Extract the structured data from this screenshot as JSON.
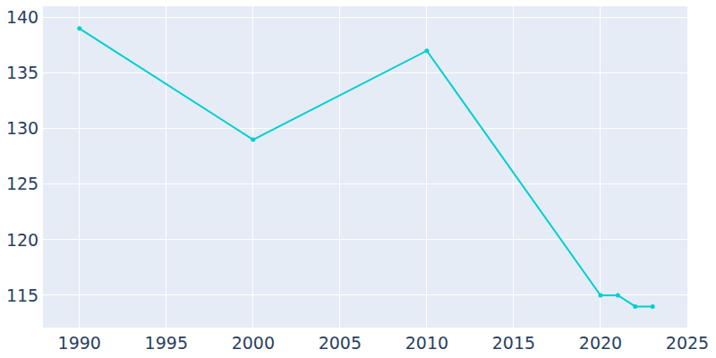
{
  "chart_data": {
    "type": "line",
    "x": [
      1990,
      2000,
      2010,
      2020,
      2021,
      2022,
      2023
    ],
    "values": [
      139,
      129,
      137,
      115,
      115,
      114,
      114
    ],
    "color": "#00ced1",
    "marker": "circle",
    "line_style": "solid",
    "xlim": [
      1987.9,
      2025
    ],
    "xticks": [
      1990,
      1995,
      2000,
      2005,
      2010,
      2015,
      2020,
      2025
    ],
    "ylim": [
      112.1,
      141
    ],
    "yticks": [
      115,
      120,
      125,
      130,
      135,
      140
    ],
    "grid": true
  }
}
